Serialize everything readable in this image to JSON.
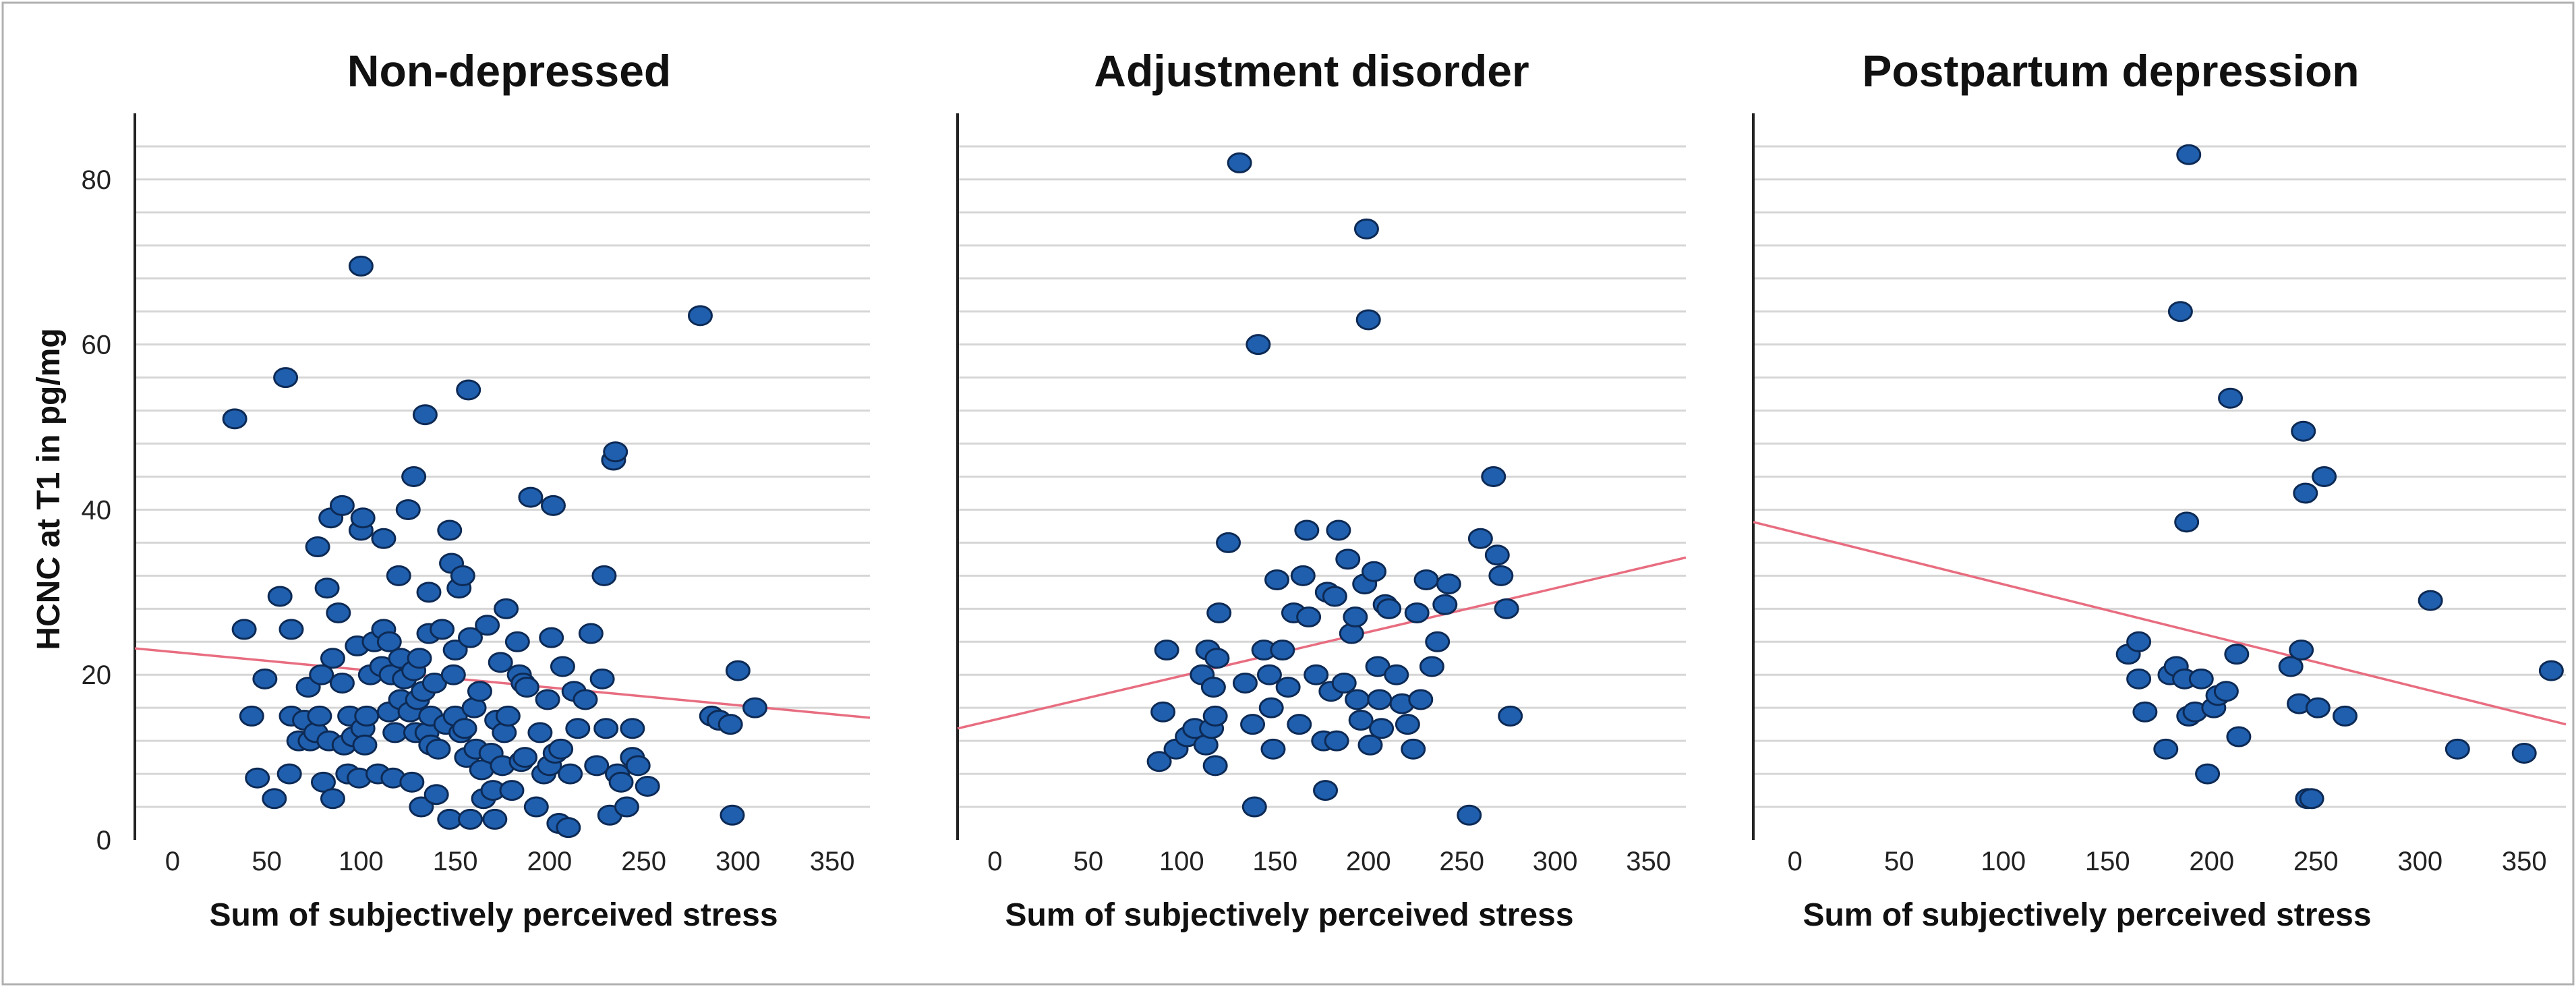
{
  "chart_data": [
    {
      "type": "scatter",
      "title": "Non-depressed",
      "xlabel": "Sum of subjectively perceived stress",
      "ylabel": "HCNC at T1 in pg/mg",
      "xlim": [
        -20,
        370
      ],
      "ylim": [
        0,
        88
      ],
      "xticks": [
        "0",
        "50",
        "100",
        "150",
        "200",
        "250",
        "300",
        "350"
      ],
      "yticks": [
        "0",
        "20",
        "40",
        "60",
        "80"
      ],
      "grid": "horizontal",
      "colors": {
        "point": "#1f5fae",
        "edge": "#0d2a55",
        "fit": "#e86d80"
      },
      "fit_line": [
        [
          -20,
          23.2
        ],
        [
          370,
          14.8
        ]
      ],
      "points": [
        [
          33,
          51
        ],
        [
          38,
          25.5
        ],
        [
          42,
          15
        ],
        [
          45,
          7.5
        ],
        [
          49,
          19.5
        ],
        [
          54,
          5
        ],
        [
          57,
          29.5
        ],
        [
          60,
          56
        ],
        [
          62,
          8
        ],
        [
          63,
          25.5
        ],
        [
          63,
          15
        ],
        [
          67,
          12
        ],
        [
          70,
          14.5
        ],
        [
          72,
          18.5
        ],
        [
          73,
          12
        ],
        [
          76,
          13
        ],
        [
          77,
          35.5
        ],
        [
          78,
          15
        ],
        [
          79,
          20
        ],
        [
          80,
          7
        ],
        [
          82,
          30.5
        ],
        [
          83,
          12
        ],
        [
          84,
          39
        ],
        [
          85,
          5
        ],
        [
          85,
          22
        ],
        [
          88,
          27.5
        ],
        [
          90,
          40.5
        ],
        [
          90,
          19
        ],
        [
          91,
          11.5
        ],
        [
          93,
          8
        ],
        [
          94,
          15
        ],
        [
          96,
          12.5
        ],
        [
          98,
          23.5
        ],
        [
          99,
          7.5
        ],
        [
          100,
          69.5
        ],
        [
          100,
          37.5
        ],
        [
          101,
          39
        ],
        [
          101,
          13.5
        ],
        [
          102,
          11.5
        ],
        [
          103,
          15
        ],
        [
          105,
          20
        ],
        [
          107,
          24
        ],
        [
          109,
          8
        ],
        [
          111,
          21
        ],
        [
          112,
          36.5
        ],
        [
          112,
          25.5
        ],
        [
          115,
          15.5
        ],
        [
          115,
          24
        ],
        [
          116,
          20
        ],
        [
          117,
          7.5
        ],
        [
          118,
          13
        ],
        [
          120,
          32
        ],
        [
          121,
          22
        ],
        [
          121,
          17
        ],
        [
          123,
          19.5
        ],
        [
          125,
          40
        ],
        [
          126,
          15.5
        ],
        [
          127,
          7
        ],
        [
          128,
          44
        ],
        [
          128,
          20.5
        ],
        [
          129,
          13
        ],
        [
          130,
          17
        ],
        [
          131,
          22
        ],
        [
          132,
          4
        ],
        [
          133,
          18
        ],
        [
          134,
          51.5
        ],
        [
          135,
          13
        ],
        [
          136,
          30
        ],
        [
          136,
          25
        ],
        [
          137,
          15
        ],
        [
          137,
          11.5
        ],
        [
          139,
          19
        ],
        [
          140,
          5.5
        ],
        [
          141,
          11
        ],
        [
          143,
          25.5
        ],
        [
          145,
          14
        ],
        [
          147,
          37.5
        ],
        [
          147,
          2.5
        ],
        [
          148,
          33.5
        ],
        [
          149,
          20
        ],
        [
          150,
          23
        ],
        [
          150,
          15
        ],
        [
          152,
          30.5
        ],
        [
          153,
          13
        ],
        [
          154,
          32
        ],
        [
          155,
          13.5
        ],
        [
          156,
          10
        ],
        [
          157,
          54.5
        ],
        [
          158,
          24.5
        ],
        [
          158,
          2.5
        ],
        [
          160,
          16
        ],
        [
          161,
          11
        ],
        [
          163,
          18
        ],
        [
          164,
          8.5
        ],
        [
          165,
          5
        ],
        [
          167,
          26
        ],
        [
          169,
          10.5
        ],
        [
          170,
          6
        ],
        [
          171,
          2.5
        ],
        [
          172,
          14.5
        ],
        [
          174,
          21.5
        ],
        [
          175,
          9
        ],
        [
          176,
          13
        ],
        [
          177,
          28
        ],
        [
          178,
          15
        ],
        [
          180,
          6
        ],
        [
          183,
          24
        ],
        [
          184,
          20
        ],
        [
          185,
          9.5
        ],
        [
          186,
          19
        ],
        [
          187,
          10
        ],
        [
          188,
          18.5
        ],
        [
          190,
          41.5
        ],
        [
          193,
          4
        ],
        [
          195,
          13
        ],
        [
          197,
          8
        ],
        [
          199,
          17
        ],
        [
          200,
          9
        ],
        [
          201,
          24.5
        ],
        [
          202,
          40.5
        ],
        [
          203,
          10.5
        ],
        [
          205,
          2
        ],
        [
          206,
          11
        ],
        [
          207,
          21
        ],
        [
          210,
          1.5
        ],
        [
          211,
          8
        ],
        [
          213,
          18
        ],
        [
          215,
          13.5
        ],
        [
          219,
          17
        ],
        [
          222,
          25
        ],
        [
          225,
          9
        ],
        [
          228,
          19.5
        ],
        [
          229,
          32
        ],
        [
          230,
          13.5
        ],
        [
          232,
          3
        ],
        [
          234,
          46
        ],
        [
          235,
          47
        ],
        [
          236,
          8
        ],
        [
          238,
          7
        ],
        [
          241,
          4
        ],
        [
          244,
          13.5
        ],
        [
          244,
          10
        ],
        [
          247,
          9
        ],
        [
          252,
          6.5
        ],
        [
          280,
          63.5
        ],
        [
          286,
          15
        ],
        [
          290,
          14.5
        ],
        [
          296,
          14
        ],
        [
          297,
          3
        ],
        [
          300,
          20.5
        ],
        [
          309,
          16
        ]
      ]
    },
    {
      "type": "scatter",
      "title": "Adjustment disorder",
      "xlabel": "Sum of subjectively perceived stress",
      "ylabel": "",
      "xlim": [
        -20,
        370
      ],
      "ylim": [
        0,
        88
      ],
      "xticks": [
        "0",
        "50",
        "100",
        "150",
        "200",
        "250",
        "300",
        "350"
      ],
      "yticks": [],
      "grid": "horizontal",
      "colors": {
        "point": "#1f5fae",
        "edge": "#0d2a55",
        "fit": "#e86d80"
      },
      "fit_line": [
        [
          -20,
          13.5
        ],
        [
          370,
          34.2
        ]
      ],
      "points": [
        [
          88,
          9.5
        ],
        [
          90,
          15.5
        ],
        [
          92,
          23
        ],
        [
          97,
          11
        ],
        [
          103,
          12.5
        ],
        [
          107,
          13.5
        ],
        [
          111,
          20
        ],
        [
          113,
          11.5
        ],
        [
          114,
          23
        ],
        [
          116,
          13.5
        ],
        [
          117,
          18.5
        ],
        [
          118,
          15
        ],
        [
          118,
          9
        ],
        [
          119,
          22
        ],
        [
          120,
          27.5
        ],
        [
          125,
          36
        ],
        [
          131,
          82
        ],
        [
          134,
          19
        ],
        [
          138,
          14
        ],
        [
          139,
          4
        ],
        [
          141,
          60
        ],
        [
          144,
          23
        ],
        [
          147,
          20
        ],
        [
          148,
          16
        ],
        [
          149,
          11
        ],
        [
          151,
          31.5
        ],
        [
          154,
          23
        ],
        [
          157,
          18.5
        ],
        [
          160,
          27.5
        ],
        [
          163,
          14
        ],
        [
          165,
          32
        ],
        [
          167,
          37.5
        ],
        [
          168,
          27
        ],
        [
          172,
          20
        ],
        [
          176,
          12
        ],
        [
          177,
          6
        ],
        [
          178,
          30
        ],
        [
          180,
          18
        ],
        [
          182,
          29.5
        ],
        [
          183,
          12
        ],
        [
          184,
          37.5
        ],
        [
          187,
          19
        ],
        [
          189,
          34
        ],
        [
          191,
          25
        ],
        [
          193,
          27
        ],
        [
          194,
          17
        ],
        [
          196,
          14.5
        ],
        [
          198,
          31
        ],
        [
          199,
          74
        ],
        [
          200,
          63
        ],
        [
          201,
          11.5
        ],
        [
          203,
          32.5
        ],
        [
          205,
          21
        ],
        [
          206,
          17
        ],
        [
          207,
          13.5
        ],
        [
          209,
          28.5
        ],
        [
          211,
          28
        ],
        [
          215,
          20
        ],
        [
          218,
          16.5
        ],
        [
          221,
          14
        ],
        [
          224,
          11
        ],
        [
          226,
          27.5
        ],
        [
          228,
          17
        ],
        [
          231,
          31.5
        ],
        [
          234,
          21
        ],
        [
          237,
          24
        ],
        [
          241,
          28.5
        ],
        [
          243,
          31
        ],
        [
          254,
          3
        ],
        [
          260,
          36.5
        ],
        [
          267,
          44
        ],
        [
          269,
          34.5
        ],
        [
          271,
          32
        ],
        [
          274,
          28
        ],
        [
          276,
          15
        ]
      ]
    },
    {
      "type": "scatter",
      "title": "Postpartum depression",
      "xlabel": "Sum of subjectively perceived stress",
      "ylabel": "",
      "xlim": [
        -20,
        370
      ],
      "ylim": [
        0,
        88
      ],
      "xticks": [
        "0",
        "50",
        "100",
        "150",
        "200",
        "250",
        "300",
        "350"
      ],
      "yticks": [],
      "grid": "horizontal",
      "colors": {
        "point": "#1f5fae",
        "edge": "#0d2a55",
        "fit": "#e86d80"
      },
      "fit_line": [
        [
          -20,
          38.5
        ],
        [
          370,
          14
        ]
      ],
      "points": [
        [
          160,
          22.5
        ],
        [
          165,
          24
        ],
        [
          165,
          19.5
        ],
        [
          168,
          15.5
        ],
        [
          178,
          11
        ],
        [
          180,
          20
        ],
        [
          183,
          21
        ],
        [
          185,
          64
        ],
        [
          187,
          19.5
        ],
        [
          188,
          38.5
        ],
        [
          189,
          83
        ],
        [
          189,
          15
        ],
        [
          192,
          15.5
        ],
        [
          195,
          19.5
        ],
        [
          198,
          8
        ],
        [
          201,
          16
        ],
        [
          203,
          17.5
        ],
        [
          207,
          18
        ],
        [
          209,
          53.5
        ],
        [
          212,
          22.5
        ],
        [
          213,
          12.5
        ],
        [
          238,
          21
        ],
        [
          242,
          16.5
        ],
        [
          243,
          23
        ],
        [
          244,
          49.5
        ],
        [
          245,
          42
        ],
        [
          246,
          5
        ],
        [
          248,
          5
        ],
        [
          251,
          16
        ],
        [
          254,
          44
        ],
        [
          264,
          15
        ],
        [
          305,
          29
        ],
        [
          318,
          11
        ],
        [
          350,
          10.5
        ],
        [
          363,
          20.5
        ]
      ]
    }
  ]
}
